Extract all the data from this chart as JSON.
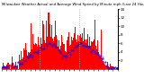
{
  "title": "Milwaukee Weather Actual and Average Wind Speed by Minute mph (Last 24 Hours)",
  "bar_color": "#ff0000",
  "line_color": "#0000ff",
  "background_color": "#ffffff",
  "vline_color": "#aaaaaa",
  "vline_positions": [
    0.333,
    0.666
  ],
  "ylim": [
    0,
    14
  ],
  "yticks": [
    2,
    4,
    6,
    8,
    10,
    12,
    14
  ],
  "num_points": 144,
  "seed": 42,
  "title_fontsize": 2.8,
  "tick_fontsize": 3.0,
  "xtick_fontsize": 2.5
}
